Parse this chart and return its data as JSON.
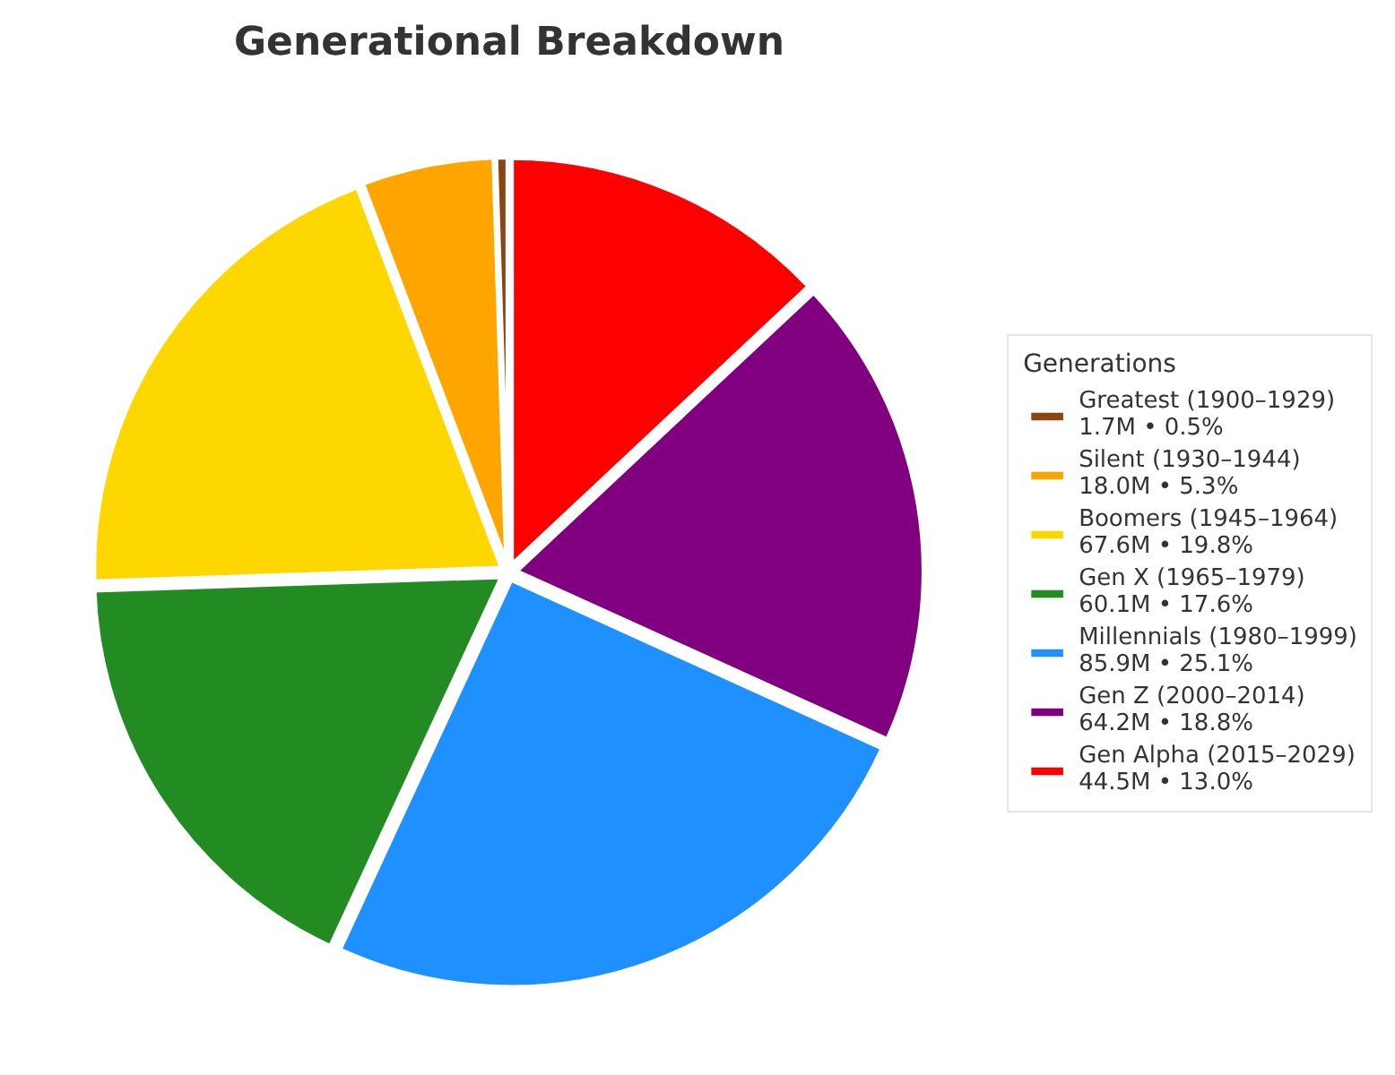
{
  "chart_data": {
    "type": "pie",
    "title": "Generational Breakdown",
    "legend_title": "Generations",
    "categories": [
      "Greatest (1900–1929)",
      "Silent (1930–1944)",
      "Boomers (1945–1964)",
      "Gen X (1965–1979)",
      "Millennials (1980–1999)",
      "Gen Z (2000–2014)",
      "Gen Alpha (2015–2029)"
    ],
    "values": [
      1700000,
      18000000,
      67600000,
      60100000,
      85900000,
      64200000,
      44500000
    ],
    "value_labels": [
      "1.7M • 0.5%",
      "18.0M • 5.3%",
      "67.6M • 19.8%",
      "60.1M • 17.6%",
      "85.9M • 25.1%",
      "64.2M • 18.8%",
      "44.5M • 13.0%"
    ],
    "colors": [
      "#8b4513",
      "#ffa500",
      "#ffd700",
      "#228b22",
      "#1e90ff",
      "#800080",
      "#ff0000"
    ],
    "legend": "right"
  }
}
